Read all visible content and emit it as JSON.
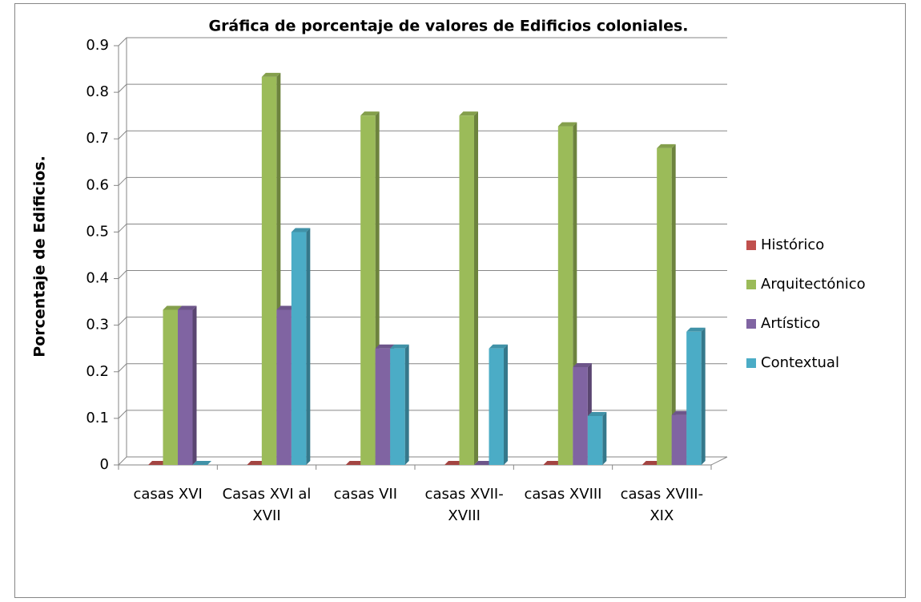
{
  "chart_data": {
    "type": "bar3d",
    "title": "Gráfica de porcentaje de valores de Edificios coloniales.",
    "y_label": "Porcentaje de Edificios.",
    "categories": [
      "casas XVI",
      "Casas XVI al XVII",
      "casas VII",
      "casas XVII- XVIII",
      "casas XVIII",
      "casas XVIII-XIX"
    ],
    "series": [
      {
        "name": "Histórico",
        "color": "#c0504d",
        "values": [
          0,
          0,
          0,
          0,
          0,
          0
        ]
      },
      {
        "name": "Arquitectónico",
        "color": "#9bbb59",
        "values": [
          0.333,
          0.833,
          0.75,
          0.75,
          0.727,
          0.68
        ]
      },
      {
        "name": "Artístico",
        "color": "#8064a2",
        "values": [
          0.333,
          0.333,
          0.25,
          0,
          0.21,
          0.107
        ]
      },
      {
        "name": "Contextual",
        "color": "#4bacc6",
        "values": [
          0,
          0.5,
          0.25,
          0.25,
          0.105,
          0.286
        ]
      }
    ],
    "ylim": [
      0,
      0.9
    ],
    "yticks": [
      0,
      0.1,
      0.2,
      0.3,
      0.4,
      0.5,
      0.6,
      0.7,
      0.8,
      0.9
    ],
    "grid": true,
    "legend": "right"
  }
}
